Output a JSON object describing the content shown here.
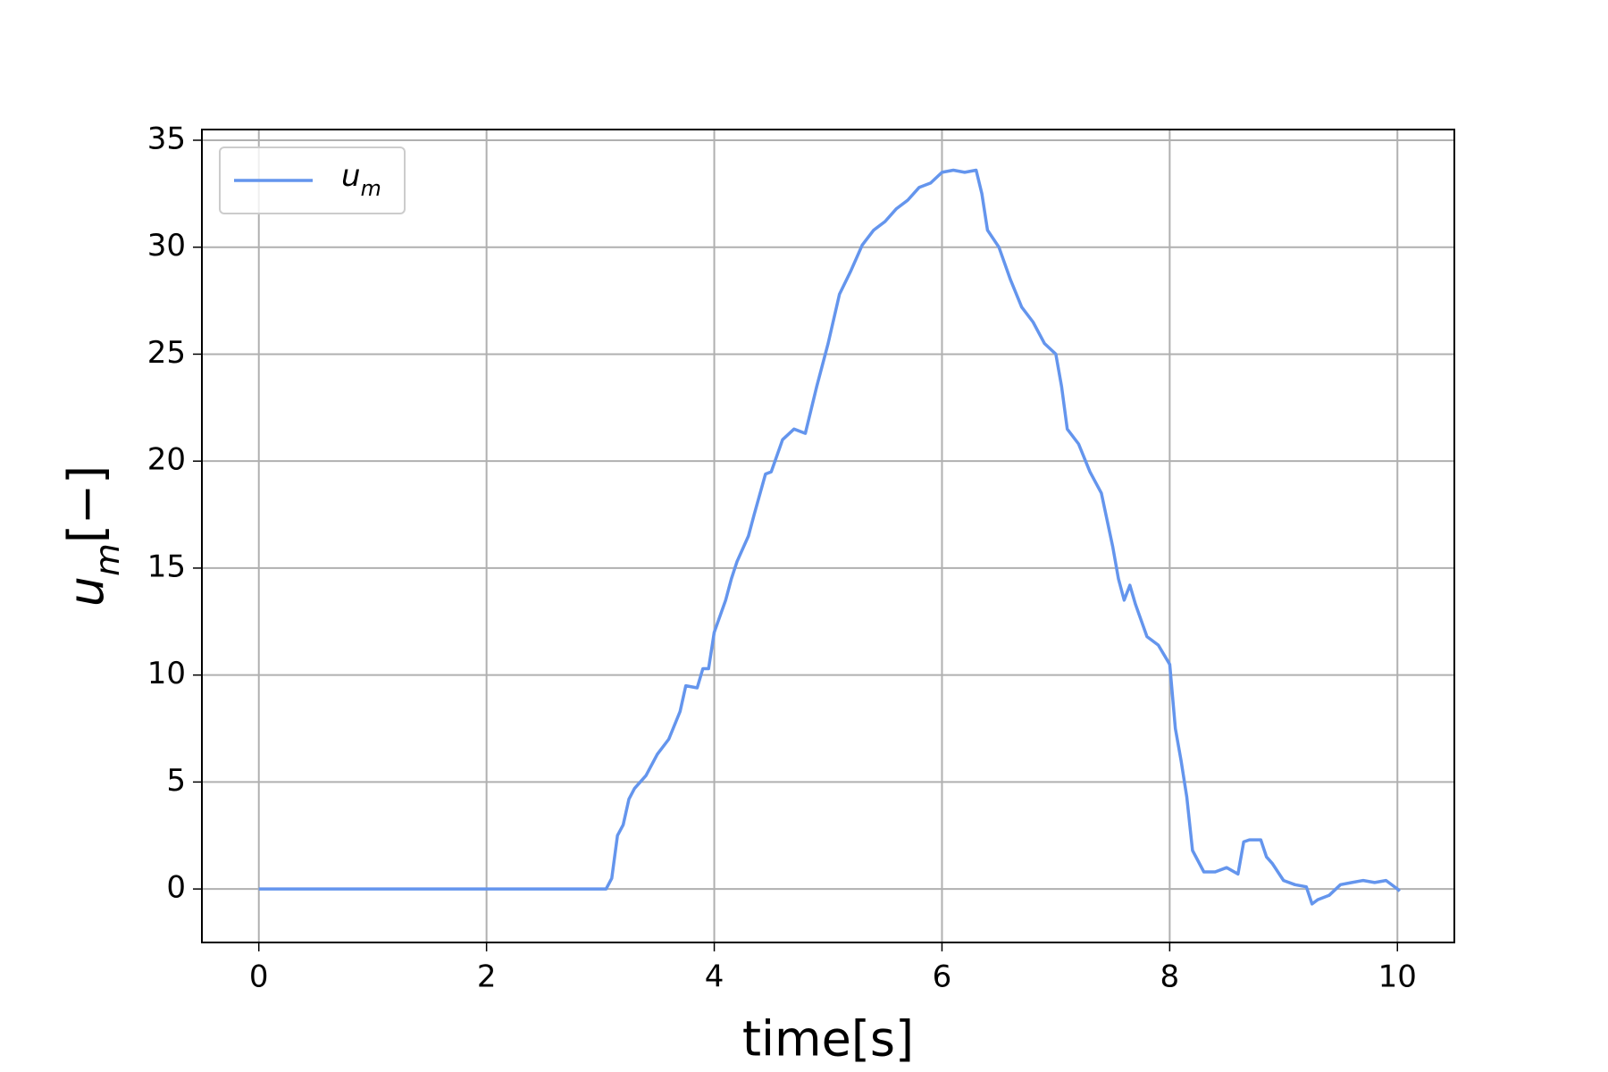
{
  "chart_data": {
    "type": "line",
    "xlabel": "time[s]",
    "ylabel": "u_m[−]",
    "x": [
      0,
      3.05,
      3.1,
      3.15,
      3.2,
      3.25,
      3.3,
      3.4,
      3.5,
      3.6,
      3.7,
      3.75,
      3.85,
      3.9,
      3.95,
      4.0,
      4.1,
      4.15,
      4.2,
      4.3,
      4.35,
      4.45,
      4.5,
      4.6,
      4.7,
      4.8,
      4.9,
      5.0,
      5.1,
      5.2,
      5.3,
      5.4,
      5.5,
      5.6,
      5.7,
      5.8,
      5.9,
      6.0,
      6.1,
      6.2,
      6.3,
      6.35,
      6.4,
      6.5,
      6.6,
      6.7,
      6.8,
      6.9,
      7.0,
      7.05,
      7.1,
      7.2,
      7.3,
      7.4,
      7.5,
      7.55,
      7.6,
      7.65,
      7.7,
      7.8,
      7.9,
      8.0,
      8.05,
      8.1,
      8.15,
      8.2,
      8.3,
      8.4,
      8.5,
      8.6,
      8.65,
      8.7,
      8.8,
      8.85,
      8.9,
      9.0,
      9.1,
      9.2,
      9.25,
      9.3,
      9.4,
      9.5,
      9.6,
      9.7,
      9.8,
      9.9,
      10.0,
      10.02
    ],
    "series": [
      {
        "name": "u_m",
        "color": "#6495ed",
        "values": [
          0,
          0,
          0.5,
          2.5,
          3.0,
          4.2,
          4.7,
          5.3,
          6.3,
          7.0,
          8.3,
          9.5,
          9.4,
          10.3,
          10.3,
          12.0,
          13.5,
          14.5,
          15.3,
          16.5,
          17.5,
          19.4,
          19.5,
          21.0,
          21.5,
          21.3,
          23.5,
          25.5,
          27.8,
          28.9,
          30.1,
          30.8,
          31.2,
          31.8,
          32.2,
          32.8,
          33.0,
          33.5,
          33.6,
          33.5,
          33.6,
          32.5,
          30.8,
          30.0,
          28.5,
          27.2,
          26.5,
          25.5,
          25.0,
          23.5,
          21.5,
          20.8,
          19.5,
          18.5,
          16.0,
          14.5,
          13.5,
          14.2,
          13.3,
          11.8,
          11.4,
          10.5,
          7.5,
          6.0,
          4.3,
          1.8,
          0.8,
          0.8,
          1.0,
          0.7,
          2.2,
          2.3,
          2.3,
          1.5,
          1.2,
          0.4,
          0.2,
          0.1,
          -0.7,
          -0.5,
          -0.3,
          0.2,
          0.3,
          0.4,
          0.3,
          0.4,
          0.0,
          -0.1
        ]
      }
    ],
    "xlim": [
      -0.5,
      10.5
    ],
    "xticks": [
      0,
      2,
      4,
      6,
      8,
      10
    ],
    "ylim": [
      -2.5,
      35.5
    ],
    "yticks": [
      0,
      5,
      10,
      15,
      20,
      25,
      30,
      35
    ],
    "grid": true,
    "legend": "upper left"
  }
}
